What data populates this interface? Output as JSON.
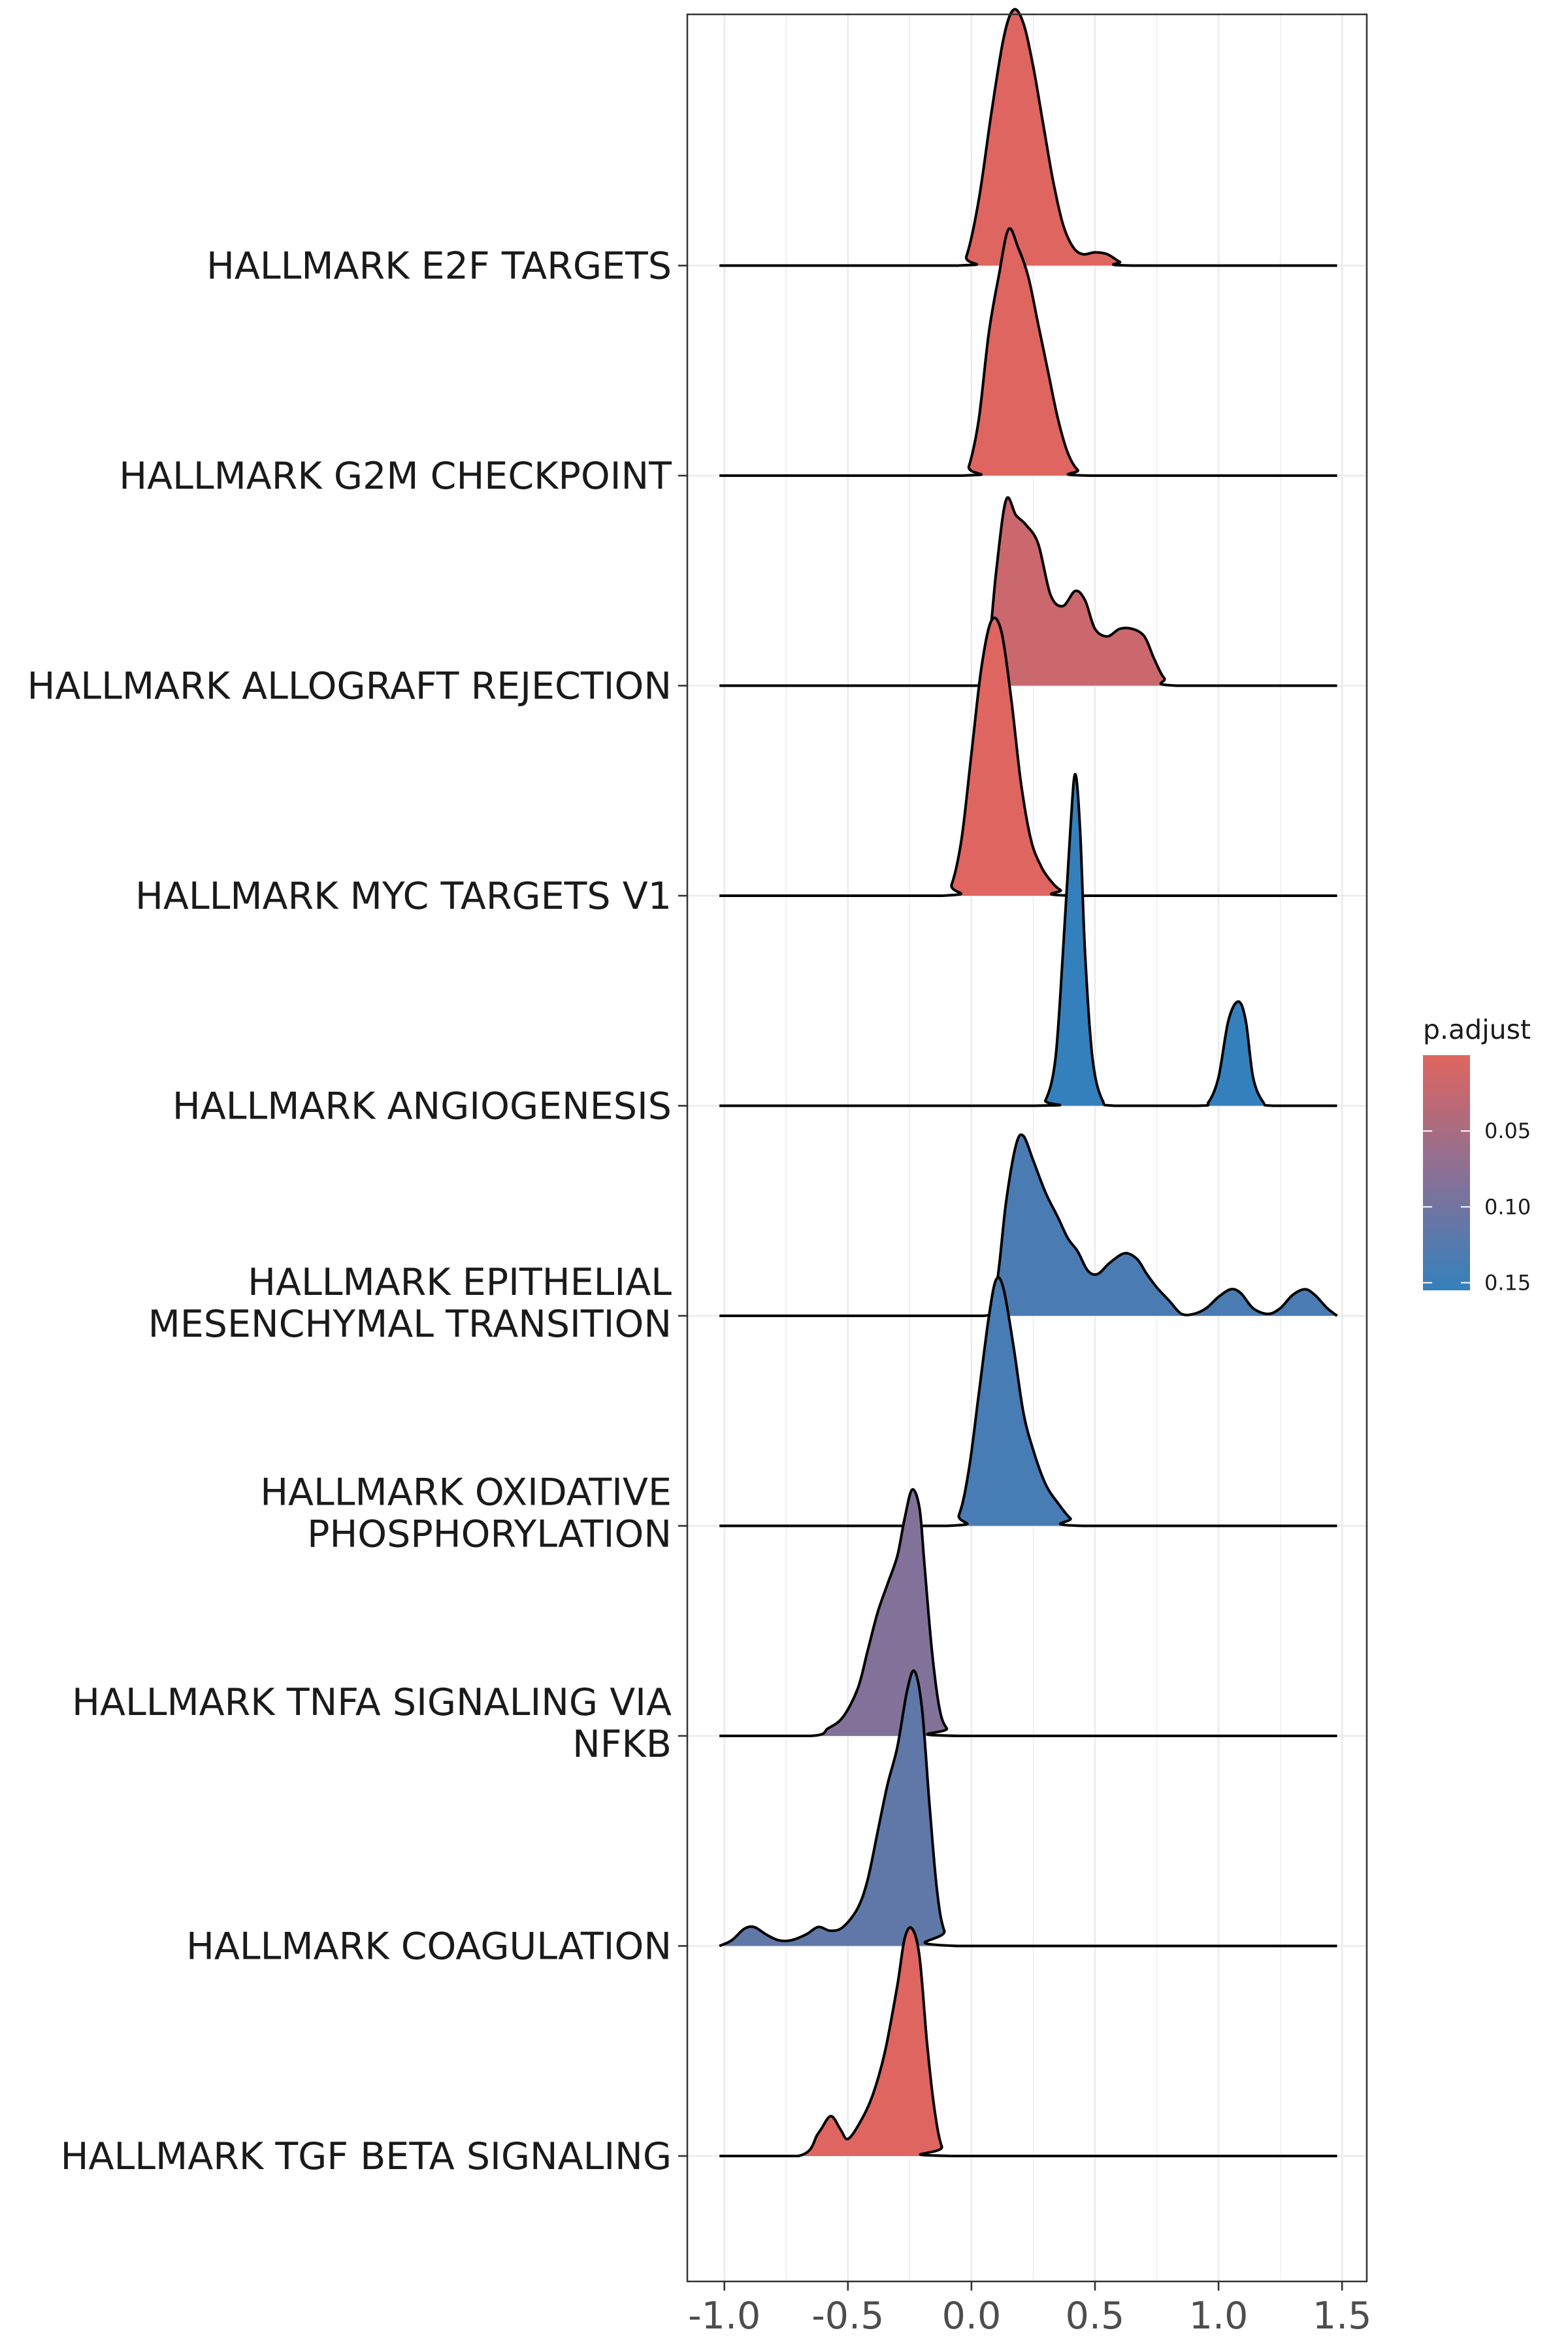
{
  "chart_data": {
    "type": "ridgeline",
    "title": "",
    "xlabel": "",
    "ylabel": "",
    "xlim": [
      -1.15,
      1.6
    ],
    "x_ticks": [
      -1.0,
      -0.5,
      0.0,
      0.5,
      1.0,
      1.5
    ],
    "x_tick_labels": [
      "-1.0",
      "-0.5",
      "0.0",
      "0.5",
      "1.0",
      "1.5"
    ],
    "grid": true,
    "legend": {
      "title": "p.adjust",
      "position": "right",
      "ticks": [
        0.05,
        0.1,
        0.15
      ],
      "tick_labels": [
        "0.05",
        "0.10",
        "0.15"
      ],
      "range": [
        0.0,
        0.155
      ],
      "color_low": "#e0655f",
      "color_high": "#3480bd"
    },
    "series": [
      {
        "name": "HALLMARK TGF BETA SIGNALING",
        "label_lines": [
          "HALLMARK TGF BETA SIGNALING"
        ],
        "p_adjust": 0.002,
        "x_range": [
          -1.02,
          1.48
        ],
        "density": [
          [
            -1.02,
            0
          ],
          [
            -0.7,
            0
          ],
          [
            -0.62,
            0.12
          ],
          [
            -0.57,
            0.21
          ],
          [
            -0.53,
            0.14
          ],
          [
            -0.5,
            0.09
          ],
          [
            -0.45,
            0.18
          ],
          [
            -0.4,
            0.32
          ],
          [
            -0.35,
            0.55
          ],
          [
            -0.3,
            0.9
          ],
          [
            -0.27,
            1.15
          ],
          [
            -0.24,
            1.2
          ],
          [
            -0.21,
            1.05
          ],
          [
            -0.18,
            0.6
          ],
          [
            -0.15,
            0.25
          ],
          [
            -0.12,
            0.05
          ],
          [
            -0.08,
            0
          ],
          [
            1.48,
            0
          ]
        ]
      },
      {
        "name": "HALLMARK COAGULATION",
        "label_lines": [
          "HALLMARK COAGULATION"
        ],
        "p_adjust": 0.115,
        "x_range": [
          -1.02,
          1.48
        ],
        "density": [
          [
            -1.02,
            0
          ],
          [
            -0.97,
            0.03
          ],
          [
            -0.92,
            0.09
          ],
          [
            -0.88,
            0.1
          ],
          [
            -0.83,
            0.06
          ],
          [
            -0.78,
            0.03
          ],
          [
            -0.73,
            0.03
          ],
          [
            -0.67,
            0.06
          ],
          [
            -0.62,
            0.1
          ],
          [
            -0.57,
            0.08
          ],
          [
            -0.52,
            0.1
          ],
          [
            -0.46,
            0.2
          ],
          [
            -0.42,
            0.35
          ],
          [
            -0.38,
            0.6
          ],
          [
            -0.34,
            0.85
          ],
          [
            -0.3,
            1.05
          ],
          [
            -0.26,
            1.35
          ],
          [
            -0.23,
            1.45
          ],
          [
            -0.2,
            1.25
          ],
          [
            -0.17,
            0.75
          ],
          [
            -0.14,
            0.3
          ],
          [
            -0.11,
            0.08
          ],
          [
            -0.06,
            0
          ],
          [
            1.48,
            0
          ]
        ]
      },
      {
        "name": "HALLMARK TNFA SIGNALING VIA NFKB",
        "label_lines": [
          "HALLMARK TNFA SIGNALING VIA",
          "NFKB"
        ],
        "p_adjust": 0.085,
        "x_range": [
          -1.02,
          1.48
        ],
        "density": [
          [
            -1.02,
            0
          ],
          [
            -0.65,
            0
          ],
          [
            -0.58,
            0.04
          ],
          [
            -0.52,
            0.1
          ],
          [
            -0.46,
            0.25
          ],
          [
            -0.42,
            0.45
          ],
          [
            -0.38,
            0.65
          ],
          [
            -0.34,
            0.8
          ],
          [
            -0.3,
            0.95
          ],
          [
            -0.27,
            1.15
          ],
          [
            -0.24,
            1.3
          ],
          [
            -0.21,
            1.2
          ],
          [
            -0.19,
            0.9
          ],
          [
            -0.16,
            0.45
          ],
          [
            -0.13,
            0.15
          ],
          [
            -0.1,
            0.04
          ],
          [
            -0.05,
            0
          ],
          [
            1.48,
            0
          ]
        ]
      },
      {
        "name": "HALLMARK OXIDATIVE PHOSPHORYLATION",
        "label_lines": [
          "HALLMARK OXIDATIVE",
          "PHOSPHORYLATION"
        ],
        "p_adjust": 0.138,
        "x_range": [
          -1.02,
          1.48
        ],
        "density": [
          [
            -1.02,
            0
          ],
          [
            -0.1,
            0
          ],
          [
            -0.05,
            0.06
          ],
          [
            -0.01,
            0.3
          ],
          [
            0.03,
            0.7
          ],
          [
            0.07,
            1.1
          ],
          [
            0.1,
            1.3
          ],
          [
            0.13,
            1.25
          ],
          [
            0.17,
            0.95
          ],
          [
            0.21,
            0.6
          ],
          [
            0.25,
            0.4
          ],
          [
            0.3,
            0.22
          ],
          [
            0.35,
            0.12
          ],
          [
            0.4,
            0.04
          ],
          [
            0.45,
            0
          ],
          [
            1.48,
            0
          ]
        ]
      },
      {
        "name": "HALLMARK EPITHELIAL MESENCHYMAL TRANSITION",
        "label_lines": [
          "HALLMARK EPITHELIAL",
          "MESENCHYMAL TRANSITION"
        ],
        "p_adjust": 0.135,
        "x_range": [
          -1.02,
          1.48
        ],
        "density": [
          [
            -1.02,
            0
          ],
          [
            0.05,
            0
          ],
          [
            0.1,
            0.15
          ],
          [
            0.14,
            0.6
          ],
          [
            0.18,
            0.9
          ],
          [
            0.21,
            0.95
          ],
          [
            0.25,
            0.82
          ],
          [
            0.3,
            0.65
          ],
          [
            0.35,
            0.52
          ],
          [
            0.39,
            0.41
          ],
          [
            0.43,
            0.34
          ],
          [
            0.47,
            0.24
          ],
          [
            0.51,
            0.22
          ],
          [
            0.56,
            0.28
          ],
          [
            0.62,
            0.33
          ],
          [
            0.67,
            0.3
          ],
          [
            0.71,
            0.22
          ],
          [
            0.75,
            0.15
          ],
          [
            0.8,
            0.08
          ],
          [
            0.85,
            0.01
          ],
          [
            0.9,
            0.01
          ],
          [
            0.95,
            0.04
          ],
          [
            1.0,
            0.1
          ],
          [
            1.05,
            0.14
          ],
          [
            1.09,
            0.12
          ],
          [
            1.14,
            0.04
          ],
          [
            1.2,
            0.01
          ],
          [
            1.25,
            0.04
          ],
          [
            1.3,
            0.11
          ],
          [
            1.35,
            0.14
          ],
          [
            1.39,
            0.11
          ],
          [
            1.44,
            0.04
          ],
          [
            1.48,
            0
          ]
        ]
      },
      {
        "name": "HALLMARK ANGIOGENESIS",
        "label_lines": [
          "HALLMARK ANGIOGENESIS"
        ],
        "p_adjust": 0.155,
        "x_range": [
          -1.02,
          1.48
        ],
        "density": [
          [
            -1.02,
            0
          ],
          [
            0.25,
            0
          ],
          [
            0.3,
            0.03
          ],
          [
            0.34,
            0.25
          ],
          [
            0.37,
            0.8
          ],
          [
            0.4,
            1.45
          ],
          [
            0.42,
            1.75
          ],
          [
            0.44,
            1.45
          ],
          [
            0.46,
            0.8
          ],
          [
            0.49,
            0.25
          ],
          [
            0.53,
            0.03
          ],
          [
            0.58,
            0
          ],
          [
            0.92,
            0
          ],
          [
            0.96,
            0.02
          ],
          [
            1.0,
            0.15
          ],
          [
            1.04,
            0.45
          ],
          [
            1.08,
            0.55
          ],
          [
            1.11,
            0.45
          ],
          [
            1.14,
            0.15
          ],
          [
            1.18,
            0.02
          ],
          [
            1.22,
            0
          ],
          [
            1.48,
            0
          ]
        ]
      },
      {
        "name": "HALLMARK MYC TARGETS V1",
        "label_lines": [
          "HALLMARK MYC TARGETS V1"
        ],
        "p_adjust": 0.002,
        "x_range": [
          -1.02,
          1.48
        ],
        "density": [
          [
            -1.02,
            0
          ],
          [
            -0.12,
            0
          ],
          [
            -0.08,
            0.06
          ],
          [
            -0.04,
            0.3
          ],
          [
            0.0,
            0.75
          ],
          [
            0.04,
            1.2
          ],
          [
            0.08,
            1.45
          ],
          [
            0.12,
            1.4
          ],
          [
            0.16,
            1.05
          ],
          [
            0.2,
            0.6
          ],
          [
            0.24,
            0.3
          ],
          [
            0.28,
            0.16
          ],
          [
            0.32,
            0.08
          ],
          [
            0.36,
            0.03
          ],
          [
            0.42,
            0
          ],
          [
            1.48,
            0
          ]
        ]
      },
      {
        "name": "HALLMARK ALLOGRAFT REJECTION",
        "label_lines": [
          "HALLMARK ALLOGRAFT REJECTION"
        ],
        "p_adjust": 0.02,
        "x_range": [
          -1.02,
          1.48
        ],
        "density": [
          [
            -1.02,
            0
          ],
          [
            0.02,
            0
          ],
          [
            0.06,
            0.08
          ],
          [
            0.1,
            0.6
          ],
          [
            0.14,
            0.98
          ],
          [
            0.18,
            0.9
          ],
          [
            0.22,
            0.85
          ],
          [
            0.27,
            0.75
          ],
          [
            0.32,
            0.48
          ],
          [
            0.37,
            0.42
          ],
          [
            0.42,
            0.5
          ],
          [
            0.46,
            0.45
          ],
          [
            0.5,
            0.3
          ],
          [
            0.55,
            0.26
          ],
          [
            0.6,
            0.3
          ],
          [
            0.65,
            0.3
          ],
          [
            0.7,
            0.26
          ],
          [
            0.74,
            0.14
          ],
          [
            0.78,
            0.04
          ],
          [
            0.83,
            0
          ],
          [
            1.48,
            0
          ]
        ]
      },
      {
        "name": "HALLMARK G2M CHECKPOINT",
        "label_lines": [
          "HALLMARK G2M CHECKPOINT"
        ],
        "p_adjust": 0.002,
        "x_range": [
          -1.02,
          1.48
        ],
        "density": [
          [
            -1.02,
            0
          ],
          [
            -0.04,
            0
          ],
          [
            -0.01,
            0.05
          ],
          [
            0.03,
            0.3
          ],
          [
            0.07,
            0.75
          ],
          [
            0.11,
            1.05
          ],
          [
            0.15,
            1.3
          ],
          [
            0.19,
            1.2
          ],
          [
            0.23,
            1.05
          ],
          [
            0.27,
            0.8
          ],
          [
            0.31,
            0.55
          ],
          [
            0.35,
            0.3
          ],
          [
            0.39,
            0.12
          ],
          [
            0.43,
            0.03
          ],
          [
            0.48,
            0
          ],
          [
            1.48,
            0
          ]
        ]
      },
      {
        "name": "HALLMARK E2F TARGETS",
        "label_lines": [
          "HALLMARK E2F TARGETS"
        ],
        "p_adjust": 0.002,
        "x_range": [
          -1.02,
          1.48
        ],
        "density": [
          [
            -1.02,
            0
          ],
          [
            -0.06,
            0
          ],
          [
            -0.02,
            0.05
          ],
          [
            0.03,
            0.35
          ],
          [
            0.08,
            0.8
          ],
          [
            0.13,
            1.2
          ],
          [
            0.17,
            1.35
          ],
          [
            0.21,
            1.28
          ],
          [
            0.25,
            1.05
          ],
          [
            0.29,
            0.75
          ],
          [
            0.33,
            0.45
          ],
          [
            0.37,
            0.22
          ],
          [
            0.41,
            0.1
          ],
          [
            0.45,
            0.06
          ],
          [
            0.5,
            0.07
          ],
          [
            0.55,
            0.06
          ],
          [
            0.6,
            0.02
          ],
          [
            0.65,
            0
          ],
          [
            1.48,
            0
          ]
        ]
      }
    ]
  }
}
